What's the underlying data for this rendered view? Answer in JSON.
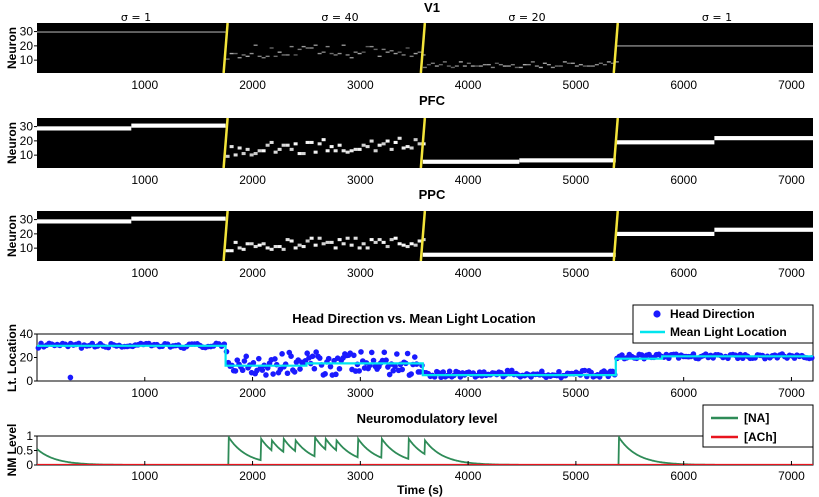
{
  "chart_data": [
    {
      "type": "heatmap",
      "title": "V1",
      "ylabel": "Neuron",
      "xlim": [
        0,
        7200
      ],
      "ylim": [
        1,
        36
      ],
      "xticks": [
        1000,
        2000,
        3000,
        4000,
        5000,
        6000,
        7000
      ],
      "yticks": [
        10,
        20,
        30
      ],
      "switch_times": [
        1750,
        3580,
        5370
      ],
      "sigma_labels": [
        "σ = 1",
        "σ = 40",
        "σ = 20",
        "σ = 1"
      ],
      "segments": [
        {
          "start": 0,
          "end": 1750,
          "center": [
            30,
            30
          ],
          "sigma": 1,
          "noise": 0
        },
        {
          "start": 1750,
          "end": 3580,
          "center": [
            15,
            15
          ],
          "sigma": 40,
          "noise": 5
        },
        {
          "start": 3580,
          "end": 5370,
          "center": [
            6,
            6
          ],
          "sigma": 20,
          "noise": 2
        },
        {
          "start": 5370,
          "end": 7200,
          "center": [
            20,
            20
          ],
          "sigma": 1,
          "noise": 0
        }
      ]
    },
    {
      "type": "heatmap",
      "title": "PFC",
      "ylabel": "Neuron",
      "xlim": [
        0,
        7200
      ],
      "ylim": [
        1,
        36
      ],
      "xticks": [
        1000,
        2000,
        3000,
        4000,
        5000,
        6000,
        7000
      ],
      "yticks": [
        10,
        20,
        30
      ],
      "switch_times": [
        1750,
        3580,
        5370
      ],
      "segments": [
        {
          "start": 0,
          "end": 1750,
          "center": [
            29,
            31
          ],
          "sigma": 1,
          "noise": 0
        },
        {
          "start": 1750,
          "end": 3580,
          "center": [
            14,
            18
          ],
          "sigma": 40,
          "noise": 5
        },
        {
          "start": 3580,
          "end": 5370,
          "center": [
            5,
            6
          ],
          "sigma": 20,
          "noise": 0
        },
        {
          "start": 5370,
          "end": 7200,
          "center": [
            19,
            22
          ],
          "sigma": 1,
          "noise": 0
        }
      ]
    },
    {
      "type": "heatmap",
      "title": "PPC",
      "ylabel": "Neuron",
      "xlim": [
        0,
        7200
      ],
      "ylim": [
        1,
        36
      ],
      "xticks": [
        1000,
        2000,
        3000,
        4000,
        5000,
        6000,
        7000
      ],
      "yticks": [
        10,
        20,
        30
      ],
      "switch_times": [
        1750,
        3580,
        5370
      ],
      "segments": [
        {
          "start": 0,
          "end": 1750,
          "center": [
            29,
            31
          ],
          "sigma": 1,
          "noise": 0
        },
        {
          "start": 1750,
          "end": 3580,
          "center": [
            12,
            15
          ],
          "sigma": 40,
          "noise": 4
        },
        {
          "start": 3580,
          "end": 5370,
          "center": [
            5,
            5
          ],
          "sigma": 20,
          "noise": 0
        },
        {
          "start": 5370,
          "end": 7200,
          "center": [
            20,
            23
          ],
          "sigma": 1,
          "noise": 0
        }
      ]
    },
    {
      "type": "scatter",
      "title": "Head Direction vs. Mean Light Location",
      "ylabel": "Lt. Location",
      "xlim": [
        0,
        7200
      ],
      "ylim": [
        0,
        40
      ],
      "xticks": [
        1000,
        2000,
        3000,
        4000,
        5000,
        6000,
        7000
      ],
      "yticks": [
        0,
        20,
        40
      ],
      "legend_position": "top-right",
      "series": [
        {
          "name": "Head Direction",
          "color": "#1a1aff",
          "segments": [
            {
              "start": 0,
              "end": 1750,
              "mean": 30,
              "spread": 2,
              "n": 70
            },
            {
              "start": 1750,
              "end": 3580,
              "mean": 15,
              "spread": 10,
              "n": 110
            },
            {
              "start": 3580,
              "end": 5370,
              "mean": 6,
              "spread": 3,
              "n": 90
            },
            {
              "start": 5370,
              "end": 7200,
              "mean": 21,
              "spread": 2,
              "n": 80
            }
          ],
          "outliers": [
            {
              "x": 310,
              "y": 3
            }
          ]
        },
        {
          "name": "Mean Light Location",
          "color": "#00e5ee",
          "steps": [
            {
              "x": 0,
              "y": 30
            },
            {
              "x": 1750,
              "y": 30
            },
            {
              "x": 1750,
              "y": 13
            },
            {
              "x": 2500,
              "y": 13
            },
            {
              "x": 2500,
              "y": 15
            },
            {
              "x": 3580,
              "y": 15
            },
            {
              "x": 3580,
              "y": 5
            },
            {
              "x": 5370,
              "y": 5
            },
            {
              "x": 5370,
              "y": 19
            },
            {
              "x": 5800,
              "y": 19
            },
            {
              "x": 5800,
              "y": 21
            },
            {
              "x": 7200,
              "y": 21
            }
          ]
        }
      ]
    },
    {
      "type": "line",
      "title": "Neuromodulatory level",
      "ylabel": "NM Level",
      "xlabel": "Time (s)",
      "xlim": [
        0,
        7200
      ],
      "ylim": [
        0,
        1
      ],
      "xticks": [
        1000,
        2000,
        3000,
        4000,
        5000,
        6000,
        7000
      ],
      "yticks": [
        0,
        0.5,
        1
      ],
      "legend_position": "top-right",
      "series": [
        {
          "name": "[NA]",
          "color": "#2e8b57",
          "peak_times": [
            0,
            1780,
            2080,
            2180,
            2290,
            2400,
            2580,
            2680,
            2780,
            2980,
            3200,
            3450,
            3600,
            5400
          ],
          "peak_values": [
            0.55,
            0.95,
            0.9,
            0.85,
            0.9,
            0.85,
            0.95,
            0.9,
            0.85,
            0.9,
            0.9,
            0.9,
            0.85,
            0.95
          ],
          "decay_tau": 170
        },
        {
          "name": "[ACh]",
          "color": "#e8141e",
          "value": 0
        }
      ]
    }
  ]
}
